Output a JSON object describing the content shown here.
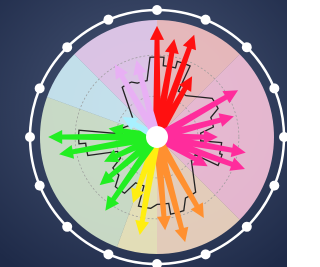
{
  "chart_data": {
    "type": "radial-arrows",
    "sectors": {
      "starts": [
        315,
        0,
        45,
        135,
        180,
        200,
        290
      ],
      "ends": [
        360,
        45,
        135,
        180,
        200,
        290,
        315
      ],
      "colors": [
        "#ecd0f2",
        "#f8c4c4",
        "#f8c4dc",
        "#f6dcc4",
        "#f6f0c2",
        "#d8ead0",
        "#d2f0f8"
      ]
    },
    "x": [
      0,
      10,
      20,
      30,
      60,
      75,
      90,
      100,
      110,
      120,
      150,
      165,
      175,
      190,
      200,
      215,
      230,
      245,
      260,
      270,
      280,
      300,
      330,
      345
    ],
    "values": [
      95,
      85,
      93,
      60,
      80,
      68,
      52,
      77,
      80,
      50,
      80,
      93,
      80,
      85,
      60,
      77,
      64,
      50,
      85,
      93,
      42,
      34,
      72,
      68
    ],
    "colors": [
      "#ff1010",
      "#ff1010",
      "#ff1010",
      "#ff1010",
      "#ff2c9c",
      "#ff2c9c",
      "#ff2c9c",
      "#ff2c9c",
      "#ff2c9c",
      "#ff2c9c",
      "#ff9030",
      "#ff9030",
      "#ff9030",
      "#ffee10",
      "#ffee10",
      "#22ee22",
      "#22ee22",
      "#22ee22",
      "#22ee22",
      "#22ee22",
      "#22ee22",
      "#a8f0ff",
      "#e8b0f4",
      "#e8b0f4"
    ],
    "ylim": [
      0,
      100
    ],
    "yticks": [
      35,
      70
    ]
  }
}
